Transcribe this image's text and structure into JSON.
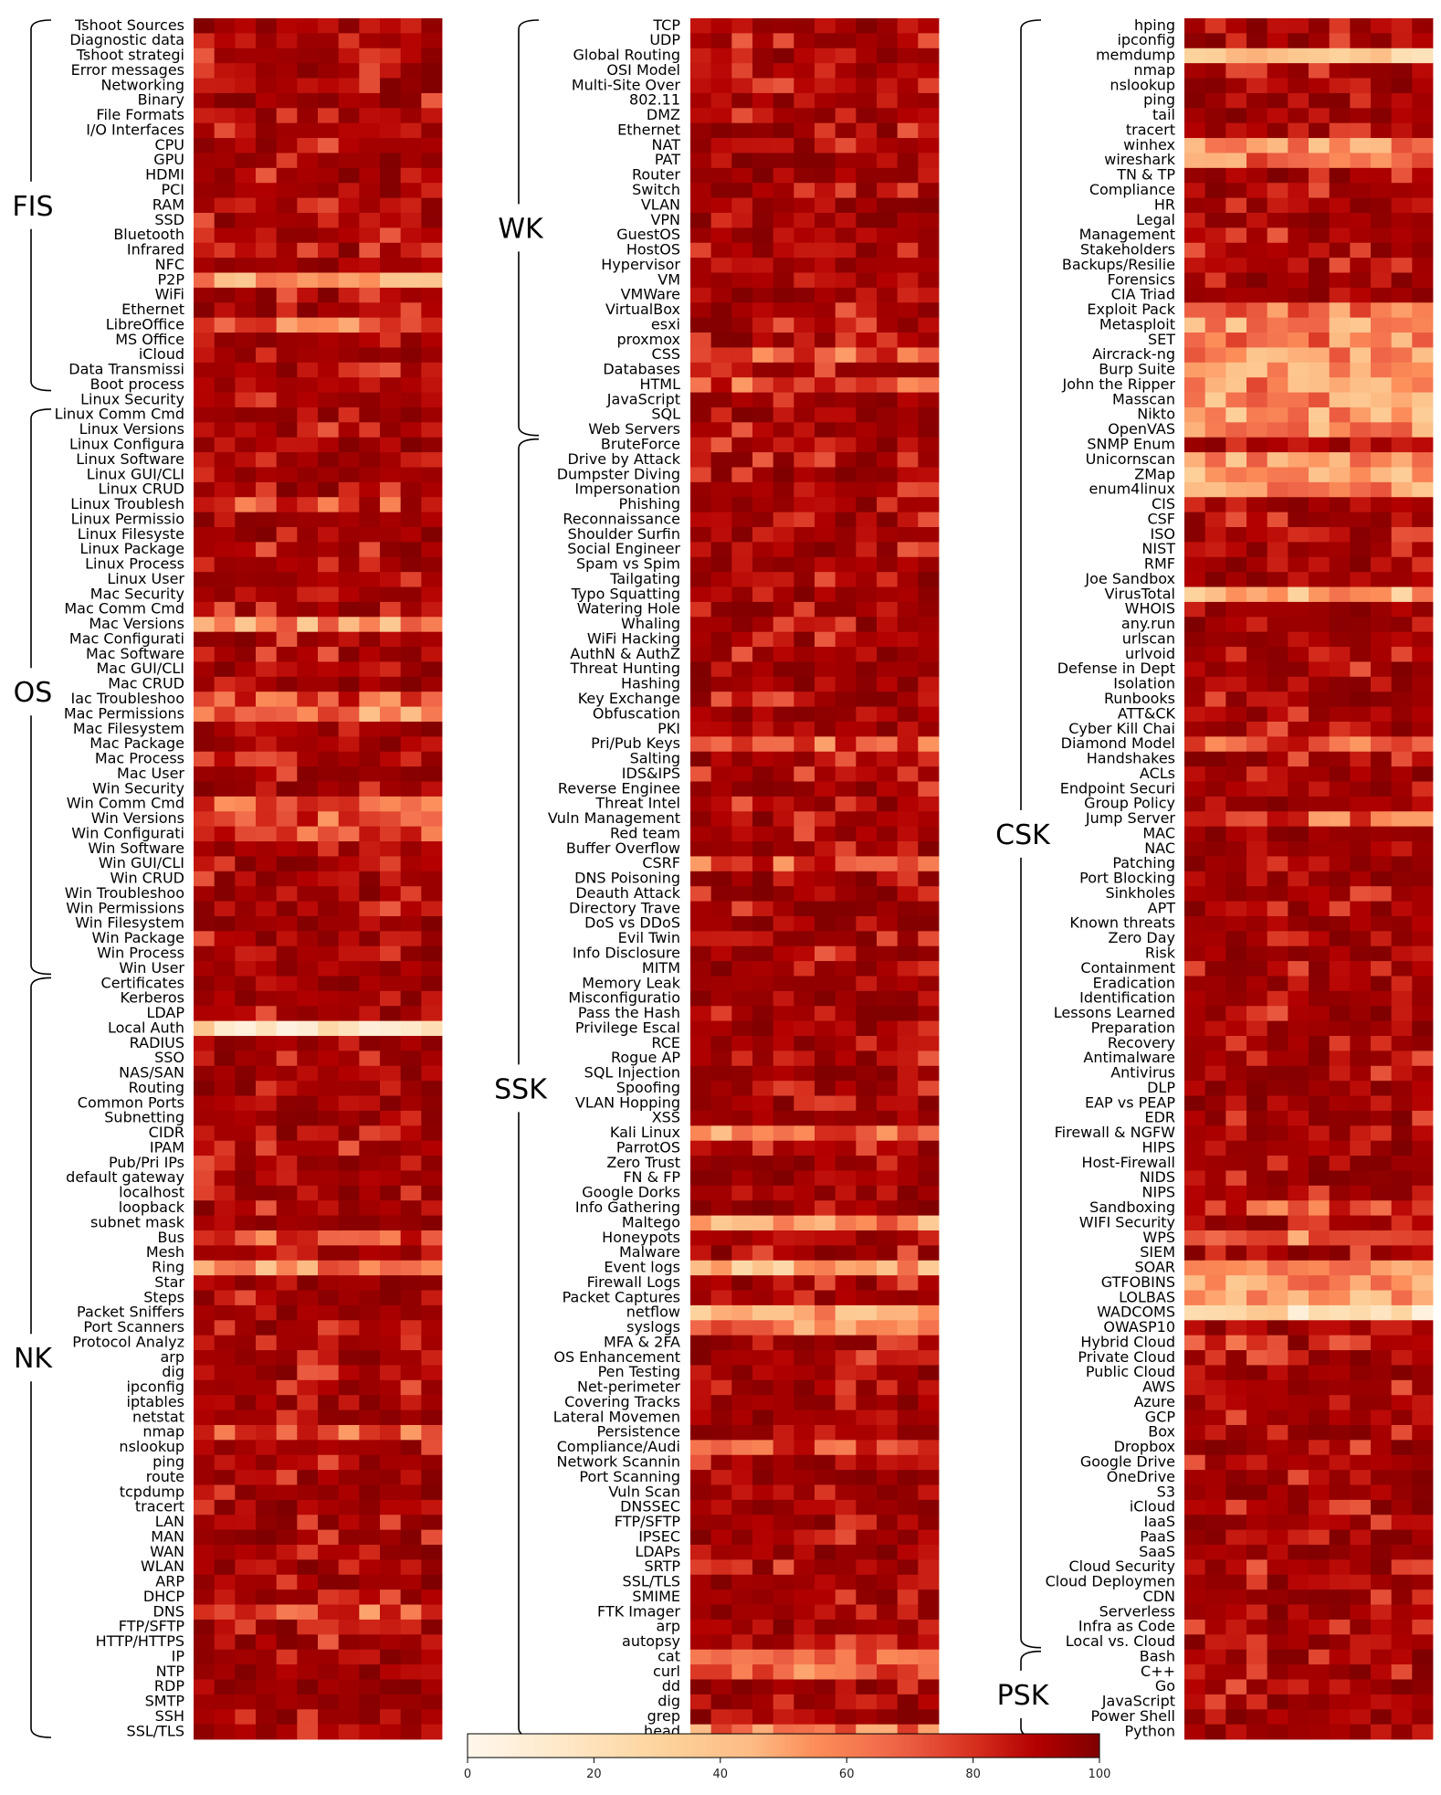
{
  "chart_data": {
    "type": "heatmap",
    "panels": [
      {
        "rows": [
          "Tshoot Sources",
          "Diagnostic data",
          "Tshoot strategi",
          "Error messages",
          "Networking",
          "Binary",
          "File Formats",
          "I/O Interfaces",
          "CPU",
          "GPU",
          "HDMI",
          "PCI",
          "RAM",
          "SSD",
          "Bluetooth",
          "Infrared",
          "NFC",
          "P2P",
          "WiFi",
          "Ethernet",
          "LibreOffice",
          "MS Office",
          "iCloud",
          "Data Transmissi",
          "Boot process",
          "Linux Security",
          "Linux Comm Cmd",
          "Linux Versions",
          "Linux Configura",
          "Linux Software",
          "Linux GUI/CLI",
          "Linux CRUD",
          "Linux Troublesh",
          "Linux Permissio",
          "Linux Filesyste",
          "Linux Package",
          "Linux Process",
          "Linux User",
          "Mac Security",
          "Mac Comm Cmd",
          "Mac Versions",
          "Mac Configurati",
          "Mac Software",
          "Mac GUI/CLI",
          "Mac CRUD",
          "Iac Troubleshoo",
          "Mac Permissions",
          "Mac Filesystem",
          "Mac Package",
          "Mac Process",
          "Mac User",
          "Win Security",
          "Win Comm Cmd",
          "Win Versions",
          "Win Configurati",
          "Win Software",
          "Win GUI/CLI",
          "Win CRUD",
          "Win Troubleshoo",
          "Win Permissions",
          "Win Filesystem",
          "Win Package",
          "Win Process",
          "Win User",
          "Certificates",
          "Kerberos",
          "LDAP",
          "Local Auth",
          "RADIUS",
          "SSO",
          "NAS/SAN",
          "Routing",
          "Common Ports",
          "Subnetting",
          "CIDR",
          "IPAM",
          "Pub/Pri IPs",
          "default gateway",
          "localhost",
          "loopback",
          "subnet mask",
          "Bus",
          "Mesh",
          "Ring",
          "Star",
          "Steps",
          "Packet Sniffers",
          "Port Scanners",
          "Protocol Analyz",
          "arp",
          "dig",
          "ipconfig",
          "iptables",
          "netstat",
          "nmap",
          "nslookup",
          "ping",
          "route",
          "tcpdump",
          "tracert",
          "LAN",
          "MAN",
          "WAN",
          "WLAN",
          "ARP",
          "DHCP",
          "DNS",
          "FTP/SFTP",
          "HTTP/HTTPS",
          "IP",
          "NTP",
          "RDP",
          "SMTP",
          "SSH",
          "SSL/TLS"
        ],
        "groups": [
          {
            "label": "FIS",
            "first_row": 0,
            "last_row": 24
          },
          {
            "label": "OS",
            "first_row": 26,
            "last_row": 63
          },
          {
            "label": "NK",
            "first_row": 64,
            "last_row": 114
          }
        ]
      },
      {
        "rows": [
          "TCP",
          "UDP",
          "Global Routing",
          "OSI Model",
          "Multi-Site Over",
          "802.11",
          "DMZ",
          "Ethernet",
          "NAT",
          "PAT",
          "Router",
          "Switch",
          "VLAN",
          "VPN",
          "GuestOS",
          "HostOS",
          "Hypervisor",
          "VM",
          "VMWare",
          "VirtualBox",
          "esxi",
          "proxmox",
          "CSS",
          "Databases",
          "HTML",
          "JavaScript",
          "SQL",
          "Web Servers",
          "BruteForce",
          "Drive by Attack",
          "Dumpster Diving",
          "Impersonation",
          "Phishing",
          "Reconnaissance",
          "Shoulder Surfin",
          "Social Engineer",
          "Spam vs Spim",
          "Tailgating",
          "Typo Squatting",
          "Watering Hole",
          "Whaling",
          "WiFi Hacking",
          "AuthN & AuthZ",
          "Threat Hunting",
          "Hashing",
          "Key Exchange",
          "Obfuscation",
          "PKI",
          "Pri/Pub Keys",
          "Salting",
          "IDS&IPS",
          "Reverse Enginee",
          "Threat Intel",
          "Vuln Management",
          "Red team",
          "Buffer Overflow",
          "CSRF",
          "DNS Poisoning",
          "Deauth Attack",
          "Directory Trave",
          "DoS vs DDoS",
          "Evil Twin",
          "Info Disclosure",
          "MITM",
          "Memory Leak",
          "Misconfiguratio",
          "Pass the Hash",
          "Privilege Escal",
          "RCE",
          "Rogue AP",
          "SQL Injection",
          "Spoofing",
          "VLAN Hopping",
          "XSS",
          "Kali Linux",
          "ParrotOS",
          "Zero Trust",
          "FN & FP",
          "Google Dorks",
          "Info Gathering",
          "Maltego",
          "Honeypots",
          "Malware",
          "Event logs",
          "Firewall Logs",
          "Packet Captures",
          "netflow",
          "syslogs",
          "MFA & 2FA",
          "OS Enhancement",
          "Pen Testing",
          "Net-perimeter",
          "Covering Tracks",
          "Lateral Movemen",
          "Persistence",
          "Compliance/Audi",
          "Network Scannin",
          "Port Scanning",
          "Vuln Scan",
          "DNSSEC",
          "FTP/SFTP",
          "IPSEC",
          "LDAPs",
          "SRTP",
          "SSL/TLS",
          "SMIME",
          "FTK Imager",
          "arp",
          "autopsy",
          "cat",
          "curl",
          "dd",
          "dig",
          "grep",
          "head"
        ],
        "groups": [
          {
            "label": "WK",
            "first_row": 0,
            "last_row": 27
          },
          {
            "label": "SSK",
            "first_row": 28,
            "last_row": 114
          }
        ]
      },
      {
        "rows": [
          "hping",
          "ipconfig",
          "memdump",
          "nmap",
          "nslookup",
          "ping",
          "tail",
          "tracert",
          "winhex",
          "wireshark",
          "TN & TP",
          "Compliance",
          "HR",
          "Legal",
          "Management",
          "Stakeholders",
          "Backups/Resilie",
          "Forensics",
          "CIA Triad",
          "Exploit Pack",
          "Metasploit",
          "SET",
          "Aircrack-ng",
          "Burp Suite",
          "John the Ripper",
          "Masscan",
          "Nikto",
          "OpenVAS",
          "SNMP Enum",
          "Unicornscan",
          "ZMap",
          "enum4linux",
          "CIS",
          "CSF",
          "ISO",
          "NIST",
          "RMF",
          "Joe Sandbox",
          "VirusTotal",
          "WHOIS",
          "any.run",
          "urlscan",
          "urlvoid",
          "Defense in Dept",
          "Isolation",
          "Runbooks",
          "ATT&CK",
          "Cyber Kill Chai",
          "Diamond Model",
          "Handshakes",
          "ACLs",
          "Endpoint Securi",
          "Group Policy",
          "Jump Server",
          "MAC",
          "NAC",
          "Patching",
          "Port Blocking",
          "Sinkholes",
          "APT",
          "Known threats",
          "Zero Day",
          "Risk",
          "Containment",
          "Eradication",
          "Identification",
          "Lessons Learned",
          "Preparation",
          "Recovery",
          "Antimalware",
          "Antivirus",
          "DLP",
          "EAP vs PEAP",
          "EDR",
          "Firewall & NGFW",
          "HIPS",
          "Host-Firewall",
          "NIDS",
          "NIPS",
          "Sandboxing",
          "WIFI Security",
          "WPS",
          "SIEM",
          "SOAR",
          "GTFOBINS",
          "LOLBAS",
          "WADCOMS",
          "OWASP10",
          "Hybrid Cloud",
          "Private Cloud",
          "Public Cloud",
          "AWS",
          "Azure",
          "GCP",
          "Box",
          "Dropbox",
          "Google Drive",
          "OneDrive",
          "S3",
          "iCloud",
          "IaaS",
          "PaaS",
          "SaaS",
          "Cloud Security",
          "Cloud Deploymen",
          "CDN",
          "Serverless",
          "Infra as Code",
          "Local vs. Cloud",
          "Bash",
          "C++",
          "Go",
          "JavaScript",
          "Power Shell",
          "Python"
        ],
        "groups": [
          {
            "label": "CSK",
            "first_row": 0,
            "last_row": 108
          },
          {
            "label": "PSK",
            "first_row": 109,
            "last_row": 114
          }
        ]
      }
    ],
    "columns_per_panel": 12,
    "colorbar": {
      "min": 0,
      "max": 100,
      "ticks": [
        0,
        20,
        40,
        60,
        80,
        100
      ],
      "colormap": "OrRd"
    },
    "light_rows": {
      "0": {
        "P2P": 55,
        "LibreOffice": 68,
        "Linux Troublesh": 78,
        "Mac Versions": 55,
        "Mac Permissions": 62,
        "Iac Troubleshoo": 70,
        "Win Comm Cmd": 66,
        "Win Versions": 70,
        "Win Configurati": 70,
        "Local Auth": 20,
        "Ring": 55,
        "nmap": 66,
        "DNS": 70,
        "Bus": 72
      },
      "1": {
        "CSS": 70,
        "HTML": 72,
        "Pri/Pub Keys": 70,
        "Kali Linux": 62,
        "Maltego": 55,
        "Event logs": 45,
        "netflow": 50,
        "syslogs": 60,
        "head": 60,
        "curl": 68,
        "cat": 68,
        "Compliance/Audi": 72,
        "CSRF": 72
      },
      "2": {
        "memdump": 30,
        "winhex": 55,
        "wireshark": 60,
        "Exploit Pack": 60,
        "Metasploit": 55,
        "SET": 60,
        "Aircrack-ng": 55,
        "Burp Suite": 55,
        "John the Ripper": 55,
        "Masscan": 55,
        "Nikto": 50,
        "OpenVAS": 55,
        "Unicornscan": 55,
        "ZMap": 50,
        "enum4linux": 55,
        "VirusTotal": 45,
        "Diamond Model": 70,
        "WPS": 62,
        "SOAR": 60,
        "GTFOBINS": 55,
        "LOLBAS": 50,
        "WADCOMS": 25,
        "Jump Server": 70,
        "Sandboxing": 72,
        "Hybrid Cloud": 80
      }
    }
  }
}
